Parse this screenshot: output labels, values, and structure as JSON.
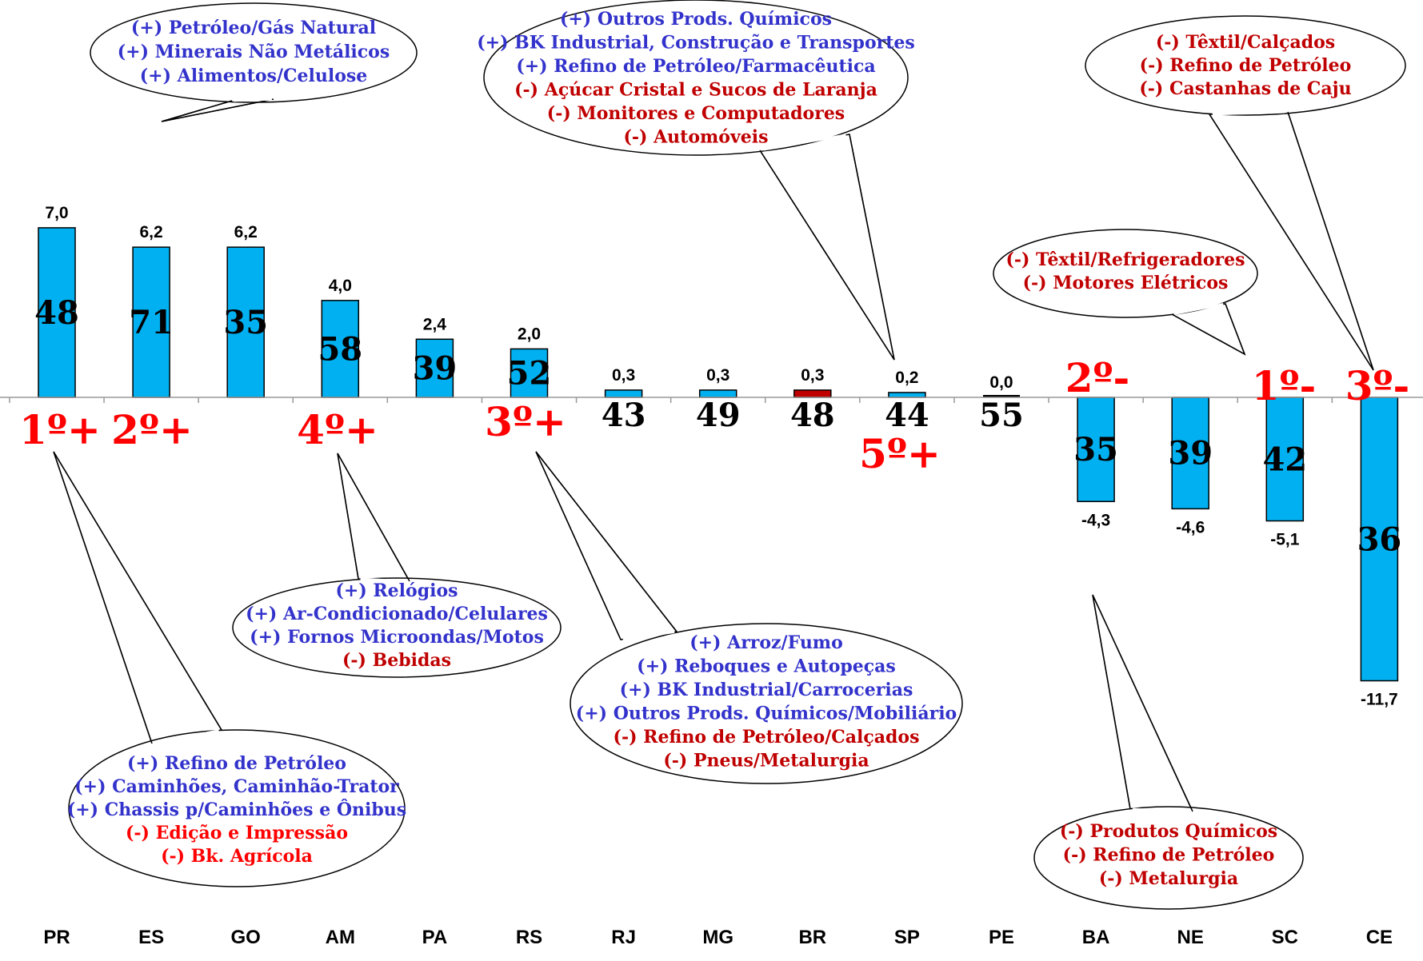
{
  "chart_data": {
    "type": "bar",
    "title": "",
    "xlabel": "",
    "ylabel": "",
    "categories": [
      "PR",
      "ES",
      "GO",
      "AM",
      "PA",
      "RS",
      "RJ",
      "MG",
      "BR",
      "SP",
      "PE",
      "BA",
      "NE",
      "SC",
      "CE"
    ],
    "values": [
      7.0,
      6.2,
      6.2,
      4.0,
      2.4,
      2.0,
      0.3,
      0.3,
      0.3,
      0.2,
      0.0,
      -4.3,
      -4.6,
      -5.1,
      -11.7
    ],
    "value_labels": [
      "7,0",
      "6,2",
      "6,2",
      "4,0",
      "2,4",
      "2,0",
      "0,3",
      "0,3",
      "0,3",
      "0,2",
      "0,0",
      "-4,3",
      "-4,6",
      "-5,1",
      "-11,7"
    ],
    "inner_labels": [
      "48",
      "71",
      "35",
      "58",
      "39",
      "52",
      "43",
      "49",
      "48",
      "44",
      "55",
      "35",
      "39",
      "42",
      "36"
    ],
    "colors": [
      "#00b0f0",
      "#00b0f0",
      "#00b0f0",
      "#00b0f0",
      "#00b0f0",
      "#00b0f0",
      "#00b0f0",
      "#00b0f0",
      "#c00000",
      "#00b0f0",
      "#00b0f0",
      "#00b0f0",
      "#00b0f0",
      "#00b0f0",
      "#00b0f0"
    ],
    "ranks": {
      "PR": "1º+",
      "ES": "2º+",
      "AM": "4º+",
      "RS": "3º+",
      "SP": "5º+",
      "BA": "2º-",
      "SC": "1º-",
      "CE": "3º-"
    },
    "ylim": [
      -12,
      7.5
    ],
    "grid": false,
    "legend": "none"
  },
  "style": {
    "positive_color": "#3333cc",
    "negative_color": "#c00000",
    "rank_color": "#ff0000"
  },
  "callouts": [
    {
      "id": "es",
      "lines": [
        {
          "text": "(+) Petróleo/Gás Natural",
          "tone": "pos"
        },
        {
          "text": "(+) Minerais Não Metálicos",
          "tone": "pos"
        },
        {
          "text": "(+) Alimentos/Celulose",
          "tone": "pos"
        }
      ]
    },
    {
      "id": "sp",
      "lines": [
        {
          "text": "(+) Outros Prods. Químicos",
          "tone": "pos"
        },
        {
          "text": "(+)  BK Industrial, Construção e Transportes",
          "tone": "pos"
        },
        {
          "text": "(+) Refino de Petróleo/Farmacêutica",
          "tone": "pos"
        },
        {
          "text": "(-) Açúcar Cristal e Sucos de Laranja",
          "tone": "neg"
        },
        {
          "text": "(-) Monitores e Computadores",
          "tone": "neg"
        },
        {
          "text": "(-) Automóveis",
          "tone": "neg"
        }
      ]
    },
    {
      "id": "ce",
      "lines": [
        {
          "text": "(-) Têxtil/Calçados",
          "tone": "neg"
        },
        {
          "text": "(-) Refino de Petróleo",
          "tone": "neg"
        },
        {
          "text": "(-) Castanhas de Caju",
          "tone": "neg"
        }
      ]
    },
    {
      "id": "sc",
      "lines": [
        {
          "text": "(-) Têxtil/Refrigeradores",
          "tone": "neg"
        },
        {
          "text": "(-) Motores Elétricos",
          "tone": "neg"
        }
      ]
    },
    {
      "id": "am",
      "lines": [
        {
          "text": "(+) Relógios",
          "tone": "pos"
        },
        {
          "text": "(+) Ar-Condicionado/Celulares",
          "tone": "pos"
        },
        {
          "text": "(+) Fornos Microondas/Motos",
          "tone": "pos"
        },
        {
          "text": "(-) Bebidas",
          "tone": "neg"
        }
      ]
    },
    {
      "id": "rs",
      "lines": [
        {
          "text": "(+) Arroz/Fumo",
          "tone": "pos"
        },
        {
          "text": "(+) Reboques e Autopeças",
          "tone": "pos"
        },
        {
          "text": "(+) BK Industrial/Carrocerias",
          "tone": "pos"
        },
        {
          "text": "(+) Outros Prods. Químicos/Mobiliário",
          "tone": "pos"
        },
        {
          "text": "(-) Refino de Petróleo/Calçados",
          "tone": "neg"
        },
        {
          "text": "(-) Pneus/Metalurgia",
          "tone": "neg"
        }
      ]
    },
    {
      "id": "pr",
      "lines": [
        {
          "text": "(+) Refino de Petróleo",
          "tone": "pos"
        },
        {
          "text": "(+) Caminhões, Caminhão-Trator",
          "tone": "pos"
        },
        {
          "text": "(+) Chassis p/Caminhões e Ônibus",
          "tone": "pos"
        },
        {
          "text": "(-) Edição e Impressão",
          "tone": "negbright"
        },
        {
          "text": "(-) Bk. Agrícola",
          "tone": "negbright"
        }
      ]
    },
    {
      "id": "ba",
      "lines": [
        {
          "text": "(-) Produtos Químicos",
          "tone": "neg"
        },
        {
          "text": "(-) Refino de Petróleo",
          "tone": "neg"
        },
        {
          "text": "(-) Metalurgia",
          "tone": "neg"
        }
      ]
    }
  ]
}
